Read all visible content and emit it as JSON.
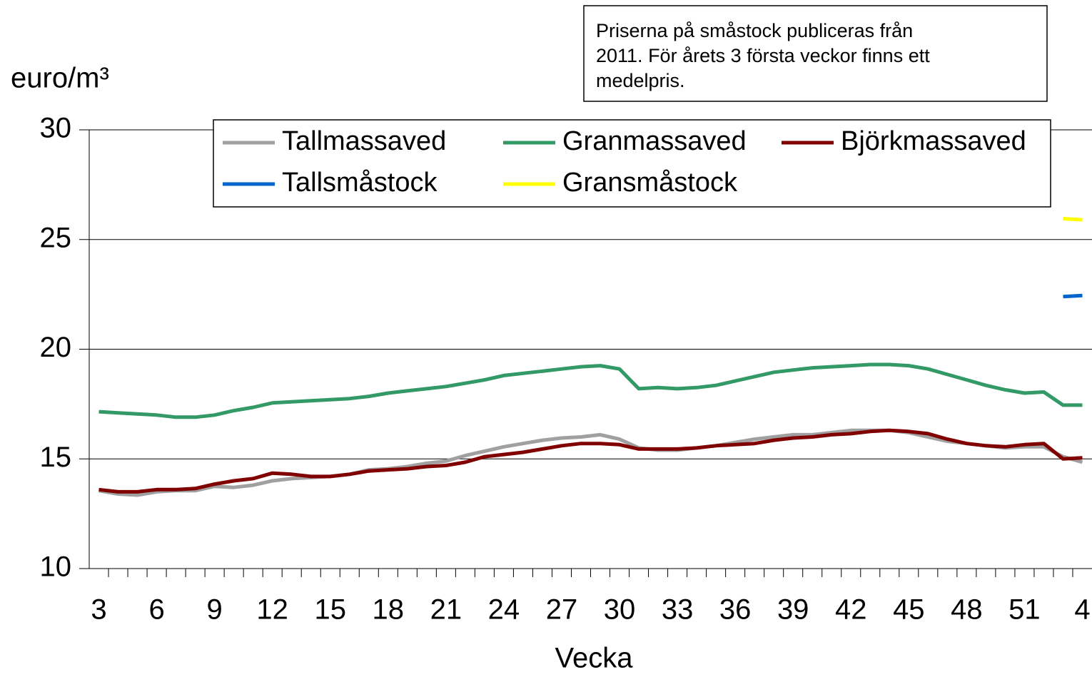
{
  "chart_data": {
    "type": "line",
    "ylabel": "euro/m³",
    "xlabel": "Vecka",
    "annotation": [
      "Priserna på småstock publiceras från",
      "2011. För årets 3 första veckor finns ett",
      "medelpris."
    ],
    "categories": [
      3,
      null,
      null,
      6,
      null,
      null,
      9,
      null,
      null,
      12,
      null,
      null,
      15,
      null,
      null,
      18,
      null,
      null,
      21,
      null,
      null,
      24,
      null,
      null,
      27,
      null,
      null,
      30,
      null,
      null,
      33,
      null,
      null,
      36,
      null,
      null,
      39,
      null,
      null,
      42,
      null,
      null,
      45,
      null,
      null,
      48,
      null,
      null,
      51,
      null,
      null,
      4
    ],
    "ylim": [
      10,
      30
    ],
    "yticks": [
      10,
      15,
      20,
      25,
      30
    ],
    "grid": true,
    "series": [
      {
        "name": "Tallmassaved",
        "color": "#a0a0a0",
        "values": [
          13.55,
          13.4,
          13.35,
          13.5,
          13.55,
          13.55,
          13.75,
          13.7,
          13.8,
          14.0,
          14.1,
          14.15,
          14.2,
          14.3,
          14.5,
          14.55,
          14.65,
          14.8,
          14.9,
          15.15,
          15.35,
          15.55,
          15.7,
          15.85,
          15.95,
          16.0,
          16.1,
          15.9,
          15.5,
          15.4,
          15.4,
          15.5,
          15.6,
          15.75,
          15.9,
          16.0,
          16.1,
          16.1,
          16.2,
          16.3,
          16.3,
          16.3,
          16.2,
          16.0,
          15.8,
          15.7,
          15.6,
          15.5,
          15.55,
          15.55,
          15.1,
          14.85
        ]
      },
      {
        "name": "Granmassaved",
        "color": "#339966",
        "values": [
          17.15,
          17.1,
          17.05,
          17.0,
          16.9,
          16.9,
          17.0,
          17.2,
          17.35,
          17.55,
          17.6,
          17.65,
          17.7,
          17.75,
          17.85,
          18.0,
          18.1,
          18.2,
          18.3,
          18.45,
          18.6,
          18.8,
          18.9,
          19.0,
          19.1,
          19.2,
          19.25,
          19.1,
          18.2,
          18.25,
          18.2,
          18.25,
          18.35,
          18.55,
          18.75,
          18.95,
          19.05,
          19.15,
          19.2,
          19.25,
          19.3,
          19.3,
          19.25,
          19.1,
          18.85,
          18.6,
          18.35,
          18.15,
          18.0,
          18.05,
          17.45,
          17.45
        ]
      },
      {
        "name": "Björkmassaved",
        "color": "#800000",
        "values": [
          13.6,
          13.5,
          13.5,
          13.6,
          13.6,
          13.65,
          13.85,
          14.0,
          14.1,
          14.35,
          14.3,
          14.2,
          14.2,
          14.3,
          14.45,
          14.5,
          14.55,
          14.65,
          14.7,
          14.85,
          15.1,
          15.2,
          15.3,
          15.45,
          15.6,
          15.7,
          15.7,
          15.65,
          15.45,
          15.45,
          15.45,
          15.5,
          15.6,
          15.65,
          15.7,
          15.85,
          15.95,
          16.0,
          16.1,
          16.15,
          16.25,
          16.3,
          16.25,
          16.15,
          15.9,
          15.7,
          15.6,
          15.55,
          15.65,
          15.7,
          15.0,
          15.05
        ]
      },
      {
        "name": "Tallsmåstock",
        "color": "#0066cc",
        "values": [
          null,
          null,
          null,
          null,
          null,
          null,
          null,
          null,
          null,
          null,
          null,
          null,
          null,
          null,
          null,
          null,
          null,
          null,
          null,
          null,
          null,
          null,
          null,
          null,
          null,
          null,
          null,
          null,
          null,
          null,
          null,
          null,
          null,
          null,
          null,
          null,
          null,
          null,
          null,
          null,
          null,
          null,
          null,
          null,
          null,
          null,
          null,
          null,
          null,
          null,
          22.4,
          22.45
        ]
      },
      {
        "name": "Gransmåstock",
        "color": "#ffff00",
        "values": [
          null,
          null,
          null,
          null,
          null,
          null,
          null,
          null,
          null,
          null,
          null,
          null,
          null,
          null,
          null,
          null,
          null,
          null,
          null,
          null,
          null,
          null,
          null,
          null,
          null,
          null,
          null,
          null,
          null,
          null,
          null,
          null,
          null,
          null,
          null,
          null,
          null,
          null,
          null,
          null,
          null,
          null,
          null,
          null,
          null,
          null,
          null,
          null,
          null,
          null,
          25.95,
          25.9
        ]
      }
    ]
  }
}
